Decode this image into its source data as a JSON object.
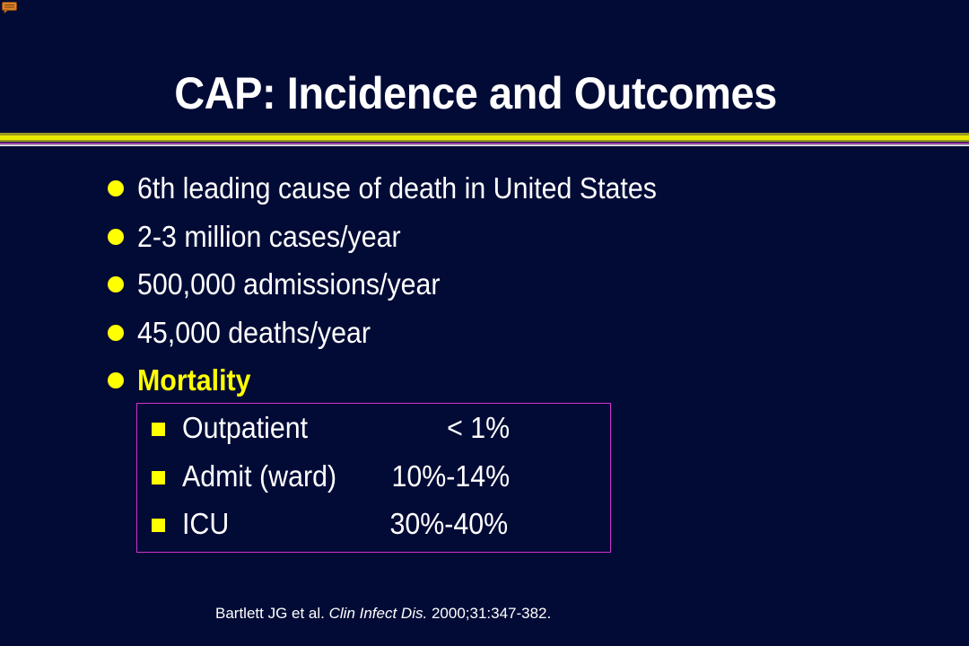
{
  "title": "CAP: Incidence and Outcomes",
  "colors": {
    "background": "#020b36",
    "accent_yellow": "#ffff00",
    "box_border": "#cc33cc",
    "text": "#ffffff"
  },
  "comment_icon": "comment-icon",
  "bullets": [
    {
      "text": "6th leading cause of death in United States"
    },
    {
      "text": "2-3 million cases/year"
    },
    {
      "text": "500,000 admissions/year"
    },
    {
      "text": "45,000 deaths/year"
    },
    {
      "text": "Mortality"
    }
  ],
  "mortality_table": [
    {
      "label": "Outpatient",
      "value": "< 1%"
    },
    {
      "label": "Admit (ward)",
      "value": "10%-14%"
    },
    {
      "label": "ICU",
      "value": "30%-40%"
    }
  ],
  "citation": {
    "authors": "Bartlett JG et al.",
    "journal": "Clin Infect Dis.",
    "details": "2000;31:347-382."
  }
}
